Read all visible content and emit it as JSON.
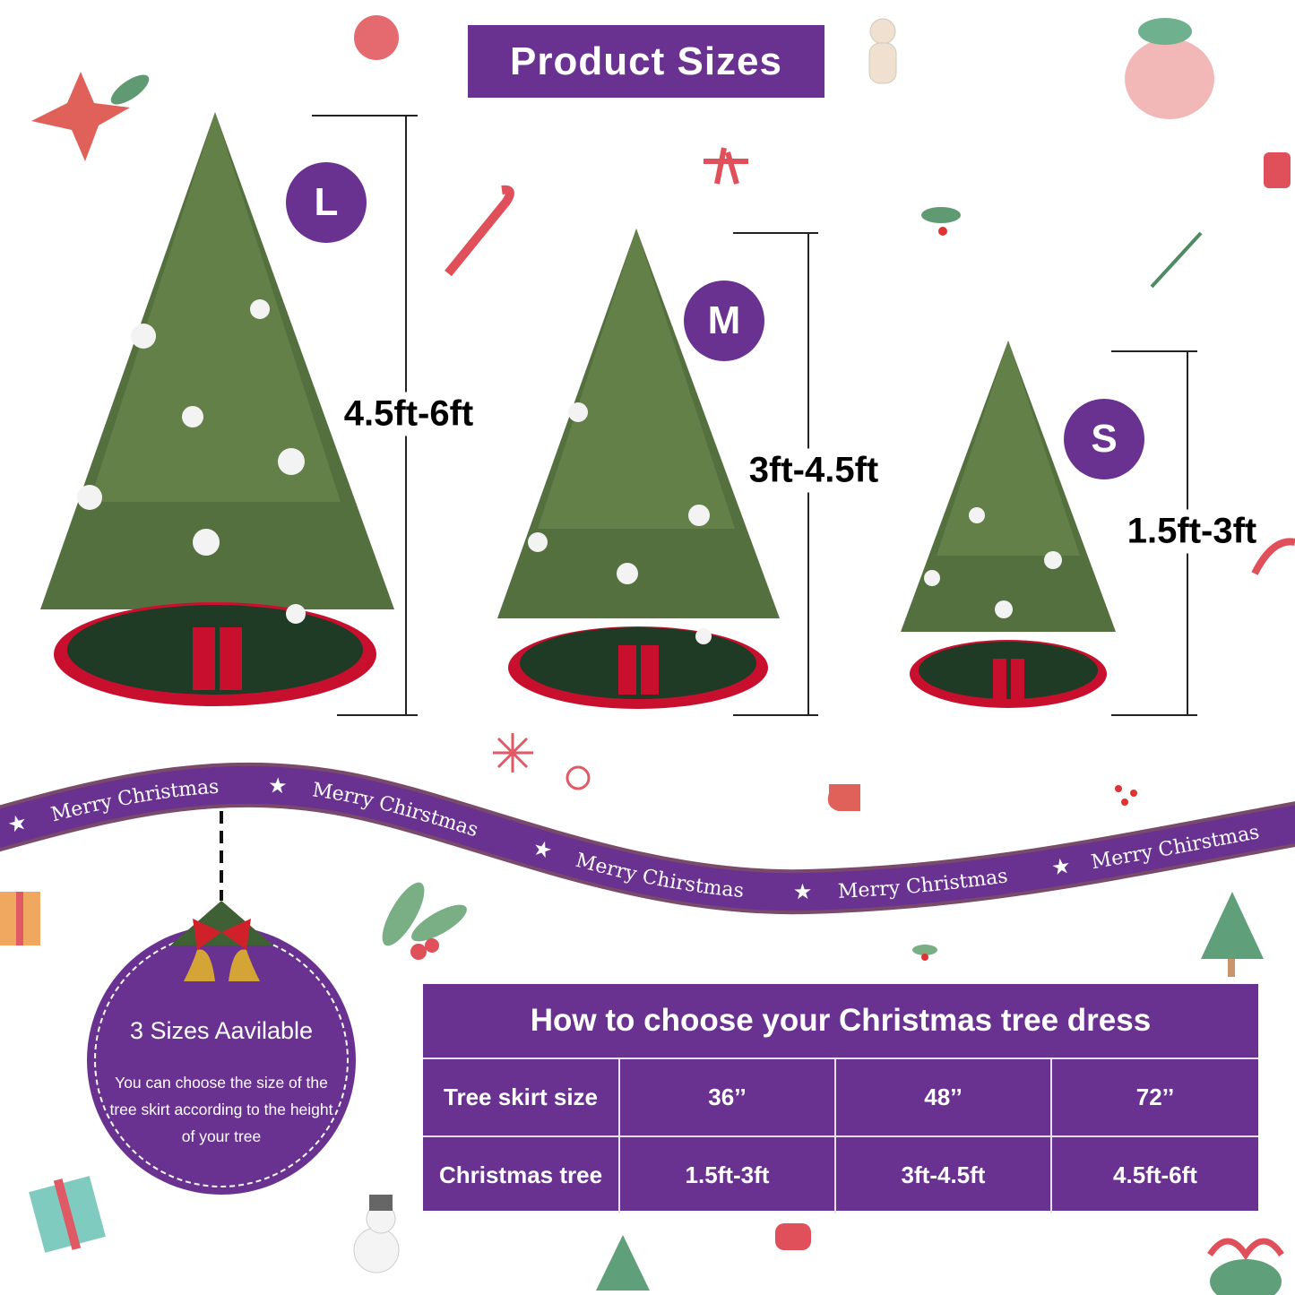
{
  "colors": {
    "purple": "#6a3290",
    "tree_green": "#4f6b3a",
    "skirt_green": "#1f3a25",
    "skirt_red": "#c8102e",
    "ribbon_edge": "#7a4a6a"
  },
  "title": "Product Sizes",
  "sizes": [
    {
      "badge": "L",
      "range": "4.5ft-6ft"
    },
    {
      "badge": "M",
      "range": "3ft-4.5ft"
    },
    {
      "badge": "S",
      "range": "1.5ft-3ft"
    }
  ],
  "ribbon": {
    "texts": [
      "Merry Christmas",
      "Merry Chirstmas",
      "Merry Chirstmas",
      "Merry Christmas",
      "Merry Chirstmas"
    ],
    "separator_icon": "star-icon"
  },
  "info_badge": {
    "title": "3 Sizes Aavilable",
    "text": "You can choose the size of the tree skirt according to the height of your tree"
  },
  "table": {
    "title": "How to choose your Christmas tree dress",
    "rows": [
      {
        "label": "Tree skirt size",
        "values": [
          "36’’",
          "48’’",
          "72’’"
        ]
      },
      {
        "label": "Christmas tree",
        "values": [
          "1.5ft-3ft",
          "3ft-4.5ft",
          "4.5ft-6ft"
        ]
      }
    ]
  }
}
